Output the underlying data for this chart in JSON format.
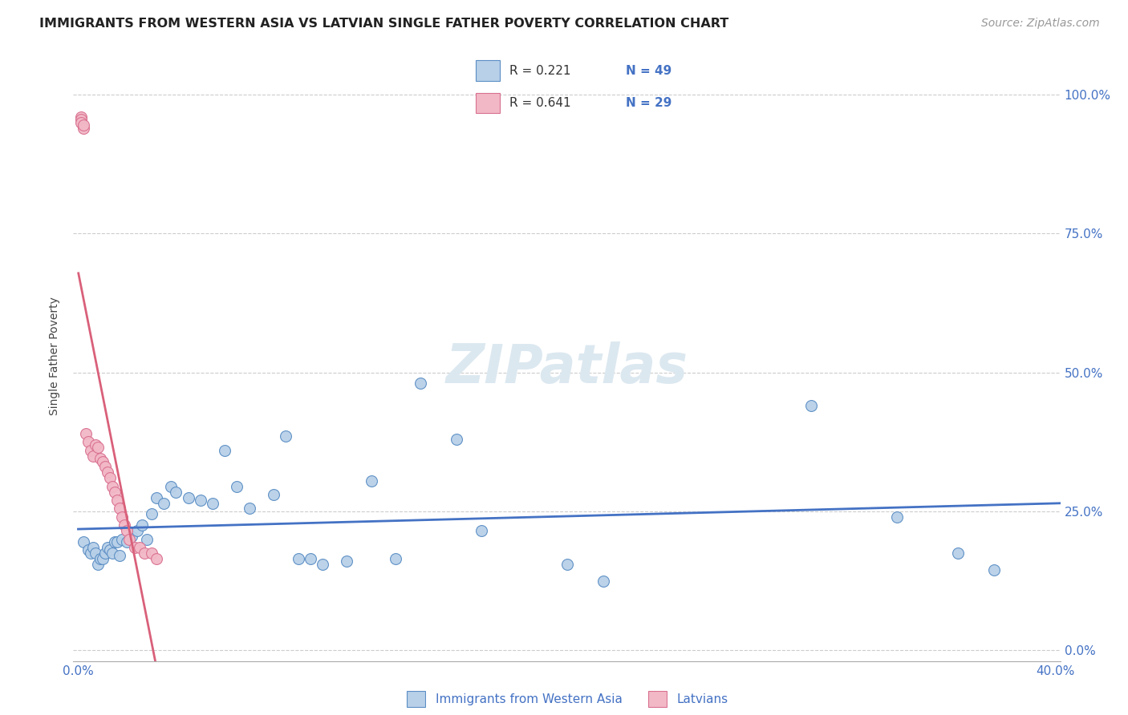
{
  "title": "IMMIGRANTS FROM WESTERN ASIA VS LATVIAN SINGLE FATHER POVERTY CORRELATION CHART",
  "source": "Source: ZipAtlas.com",
  "ylabel": "Single Father Poverty",
  "xlim": [
    -0.002,
    0.402
  ],
  "ylim": [
    -0.02,
    1.08
  ],
  "ytick_positions": [
    0.0,
    0.25,
    0.5,
    0.75,
    1.0
  ],
  "ytick_labels_right": [
    "0.0%",
    "25.0%",
    "50.0%",
    "75.0%",
    "100.0%"
  ],
  "xtick_positions": [
    0.0,
    0.1,
    0.2,
    0.3,
    0.4
  ],
  "xtick_labels": [
    "0.0%",
    "",
    "",
    "",
    "40.0%"
  ],
  "blue_fill": "#b8d0e8",
  "blue_edge": "#5b8ec4",
  "pink_fill": "#f2b8c6",
  "pink_edge": "#d97090",
  "blue_line": "#4472c4",
  "pink_line": "#d9607a",
  "grid_color": "#cccccc",
  "watermark_color": "#dce8f0",
  "axis_color": "#4472c4",
  "legend_text_color": "#4472c4",
  "blue_scatter_x": [
    0.002,
    0.004,
    0.005,
    0.006,
    0.007,
    0.008,
    0.009,
    0.01,
    0.011,
    0.012,
    0.013,
    0.014,
    0.015,
    0.016,
    0.017,
    0.018,
    0.02,
    0.022,
    0.024,
    0.026,
    0.028,
    0.03,
    0.032,
    0.035,
    0.038,
    0.04,
    0.045,
    0.05,
    0.055,
    0.06,
    0.065,
    0.07,
    0.08,
    0.085,
    0.09,
    0.095,
    0.1,
    0.11,
    0.12,
    0.13,
    0.14,
    0.155,
    0.165,
    0.2,
    0.215,
    0.3,
    0.335,
    0.36,
    0.375
  ],
  "blue_scatter_y": [
    0.195,
    0.18,
    0.175,
    0.185,
    0.175,
    0.155,
    0.165,
    0.165,
    0.175,
    0.185,
    0.18,
    0.175,
    0.195,
    0.195,
    0.17,
    0.2,
    0.195,
    0.205,
    0.215,
    0.225,
    0.2,
    0.245,
    0.275,
    0.265,
    0.295,
    0.285,
    0.275,
    0.27,
    0.265,
    0.36,
    0.295,
    0.255,
    0.28,
    0.385,
    0.165,
    0.165,
    0.155,
    0.16,
    0.305,
    0.165,
    0.48,
    0.38,
    0.215,
    0.155,
    0.125,
    0.44,
    0.24,
    0.175,
    0.145
  ],
  "pink_scatter_x": [
    0.001,
    0.001,
    0.001,
    0.002,
    0.002,
    0.003,
    0.004,
    0.005,
    0.006,
    0.007,
    0.008,
    0.009,
    0.01,
    0.011,
    0.012,
    0.013,
    0.014,
    0.015,
    0.016,
    0.017,
    0.018,
    0.019,
    0.02,
    0.021,
    0.023,
    0.025,
    0.027,
    0.03,
    0.032
  ],
  "pink_scatter_y": [
    0.96,
    0.955,
    0.95,
    0.94,
    0.945,
    0.39,
    0.375,
    0.36,
    0.35,
    0.37,
    0.365,
    0.345,
    0.34,
    0.33,
    0.32,
    0.31,
    0.295,
    0.285,
    0.27,
    0.255,
    0.24,
    0.225,
    0.215,
    0.2,
    0.185,
    0.185,
    0.175,
    0.175,
    0.165
  ]
}
